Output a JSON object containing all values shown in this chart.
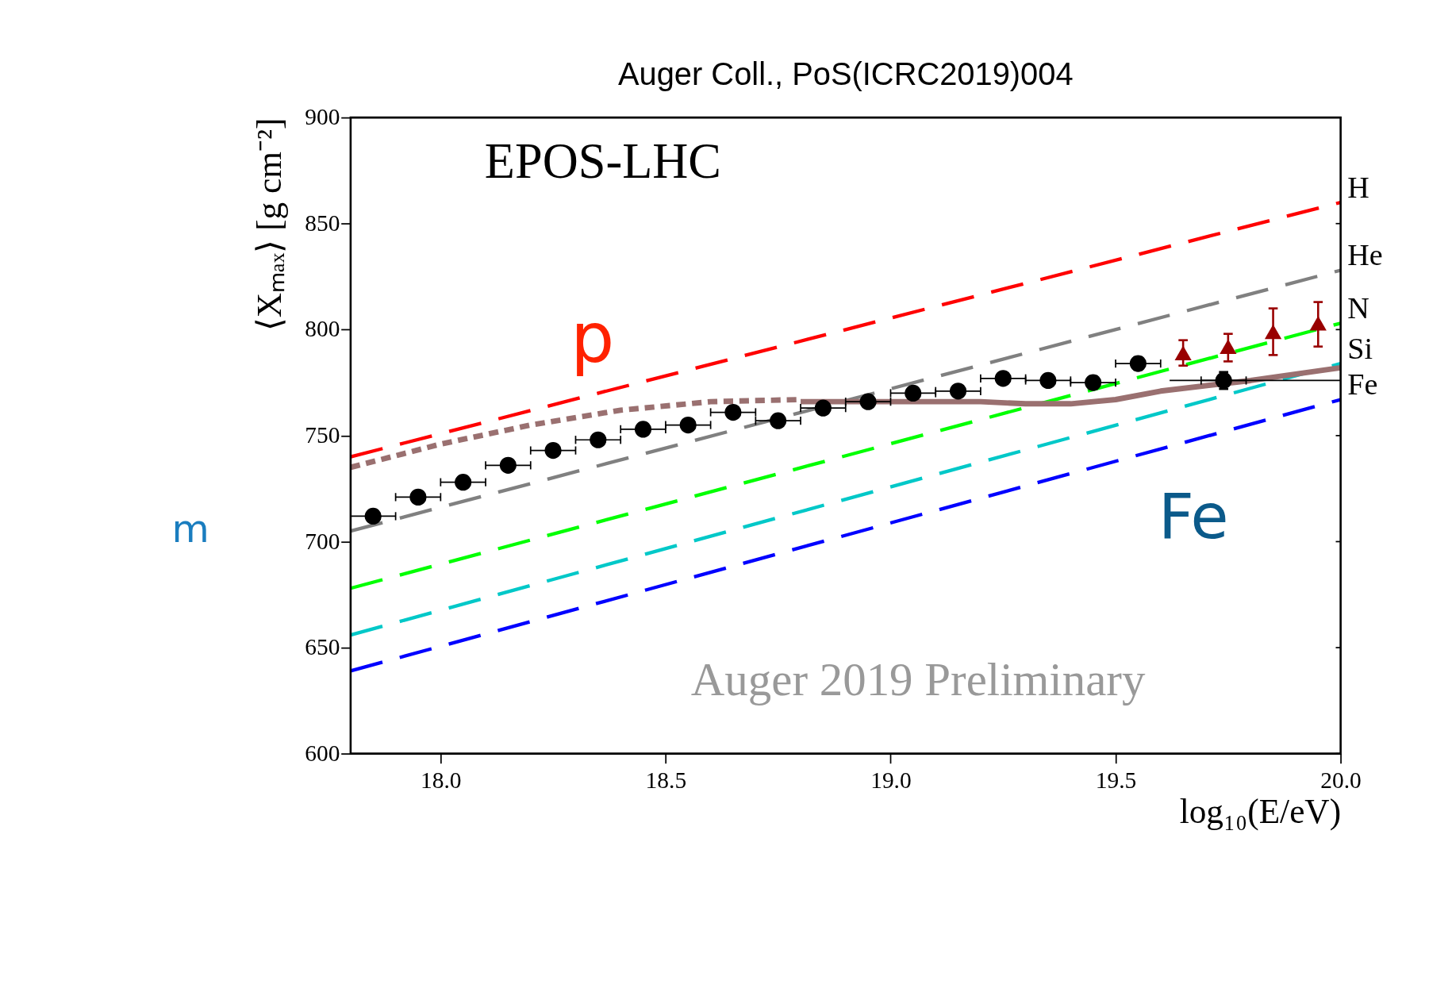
{
  "chart_data": {
    "type": "line",
    "title": "Auger Coll., PoS(ICRC2019)004",
    "xlabel": "log₁₀(E/eV)",
    "ylabel": "⟨Xₘₐₓ⟩ [g cm⁻²]",
    "annotations": [
      "EPOS-LHC",
      "p",
      "Fe",
      "Auger 2019 Preliminary",
      "m"
    ],
    "xlim": [
      17.8,
      20.0
    ],
    "ylim": [
      600,
      900
    ],
    "xticks": [
      {
        "value": 18,
        "label": "18.0"
      },
      {
        "value": 18.5,
        "label": "18.5"
      },
      {
        "value": 19,
        "label": "19.0"
      },
      {
        "value": 19.5,
        "label": "19.5"
      },
      {
        "value": 20,
        "label": "20.0"
      }
    ],
    "yticks": [
      600,
      650,
      700,
      750,
      800,
      850,
      900
    ],
    "grid": false,
    "series": [
      {
        "name": "H",
        "line_style": "dashed",
        "color": "#ff0000",
        "x": [
          17.8,
          20.0
        ],
        "values": [
          740,
          860
        ]
      },
      {
        "name": "He",
        "line_style": "dashed",
        "color": "#808080",
        "x": [
          17.8,
          20.0
        ],
        "values": [
          705,
          828
        ]
      },
      {
        "name": "N",
        "line_style": "dashed",
        "color": "#00ff00",
        "x": [
          17.8,
          20.0
        ],
        "values": [
          678,
          803
        ]
      },
      {
        "name": "Si",
        "line_style": "dashed",
        "color": "#00c8c8",
        "x": [
          17.8,
          20.0
        ],
        "values": [
          656,
          784
        ]
      },
      {
        "name": "Fe",
        "line_style": "dashed",
        "color": "#0000ff",
        "x": [
          17.8,
          20.0
        ],
        "values": [
          639,
          767
        ]
      },
      {
        "line_style": "dotted",
        "color": "#9a7070",
        "x": [
          17.8,
          18.0,
          18.2,
          18.4,
          18.6,
          18.8
        ],
        "values": [
          735,
          746,
          755,
          762,
          766,
          767
        ]
      },
      {
        "line_style": "solid",
        "color": "#9a7070",
        "x": [
          18.8,
          19.0,
          19.2,
          19.3,
          19.4,
          19.5,
          19.6,
          19.8,
          20.0
        ],
        "values": [
          766,
          766,
          766,
          765,
          765,
          767,
          771,
          776,
          782
        ]
      },
      {
        "line_style": "solid",
        "color": "#000000",
        "x": [
          19.62,
          20.0
        ],
        "values": [
          776,
          776
        ]
      },
      {
        "type": "scatter",
        "marker": "circle",
        "color": "#000000",
        "x": [
          17.85,
          17.95,
          18.05,
          18.15,
          18.25,
          18.35,
          18.45,
          18.55,
          18.65,
          18.75,
          18.85,
          18.95,
          19.05,
          19.15,
          19.25,
          19.35,
          19.45,
          19.55,
          19.74
        ],
        "values": [
          712,
          721,
          728,
          736,
          743,
          748,
          753,
          755,
          761,
          757,
          763,
          766,
          770,
          771,
          777,
          776,
          775,
          784,
          776
        ],
        "xerrors": [
          0.05,
          0.05,
          0.05,
          0.05,
          0.05,
          0.05,
          0.05,
          0.05,
          0.05,
          0.05,
          0.05,
          0.05,
          0.05,
          0.05,
          0.05,
          0.05,
          0.05,
          0.05,
          0.05
        ],
        "errors": [
          2,
          2,
          2,
          2,
          2,
          2,
          2,
          2,
          2,
          2,
          2,
          2,
          2,
          2,
          2,
          2,
          3,
          3,
          4
        ]
      },
      {
        "type": "scatter",
        "marker": "triangle",
        "color": "#990000",
        "x": [
          19.65,
          19.75,
          19.85,
          19.95
        ],
        "values": [
          789,
          792,
          799,
          803
        ],
        "errors": [
          [
            783,
            795
          ],
          [
            785,
            798
          ],
          [
            788,
            810
          ],
          [
            792,
            813
          ]
        ]
      }
    ]
  }
}
